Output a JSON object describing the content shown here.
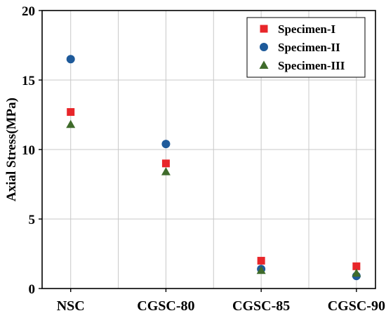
{
  "chart_data": {
    "type": "scatter",
    "title": "",
    "xlabel": "",
    "ylabel": "Axial Stress(MPa)",
    "categories": [
      "NSC",
      "CGSC-80",
      "CGSC-85",
      "CGSC-90"
    ],
    "ylim": [
      0,
      20
    ],
    "yticks": [
      0,
      5,
      10,
      15,
      20
    ],
    "grid": true,
    "legend_position": "top-right",
    "series": [
      {
        "name": "Specimen-I",
        "marker": "square",
        "color": "#e8262a",
        "values": [
          12.7,
          9.0,
          2.0,
          1.6
        ]
      },
      {
        "name": "Specimen-II",
        "marker": "circle",
        "color": "#1e5a9a",
        "values": [
          16.5,
          10.4,
          1.4,
          0.9
        ]
      },
      {
        "name": "Specimen-III",
        "marker": "triangle",
        "color": "#3f6b2b",
        "values": [
          11.8,
          8.4,
          1.3,
          1.1
        ]
      }
    ]
  }
}
